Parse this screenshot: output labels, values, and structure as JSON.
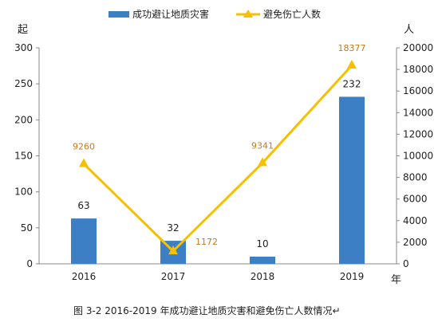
{
  "chart_data": {
    "type": "bar",
    "title": "",
    "caption": "图 3-2   2016-2019 年成功避让地质灾害和避免伤亡人数情况↵",
    "categories": [
      "2016",
      "2017",
      "2018",
      "2019"
    ],
    "x_unit": "年",
    "left_axis": {
      "unit": "起",
      "ylim": [
        0,
        300
      ],
      "ticks": [
        "0",
        "50",
        "100",
        "150",
        "200",
        "250",
        "300"
      ]
    },
    "right_axis": {
      "unit": "人",
      "ylim": [
        0,
        20000
      ],
      "ticks": [
        "0",
        "2000",
        "4000",
        "6000",
        "8000",
        "10000",
        "12000",
        "14000",
        "16000",
        "18000",
        "20000"
      ]
    },
    "series": [
      {
        "name": "成功避让地质灾害",
        "type": "bar",
        "axis": "left",
        "color": "#3d7fc5",
        "values": [
          63,
          32,
          10,
          232
        ],
        "labels": [
          "63",
          "32",
          "10",
          "232"
        ]
      },
      {
        "name": "避免伤亡人数",
        "type": "line",
        "axis": "right",
        "color": "#f5c000",
        "values": [
          9260,
          1172,
          9341,
          18377
        ],
        "labels": [
          "9260",
          "1172",
          "9341",
          "18377"
        ]
      }
    ],
    "legend_position": "top",
    "grid": false
  }
}
